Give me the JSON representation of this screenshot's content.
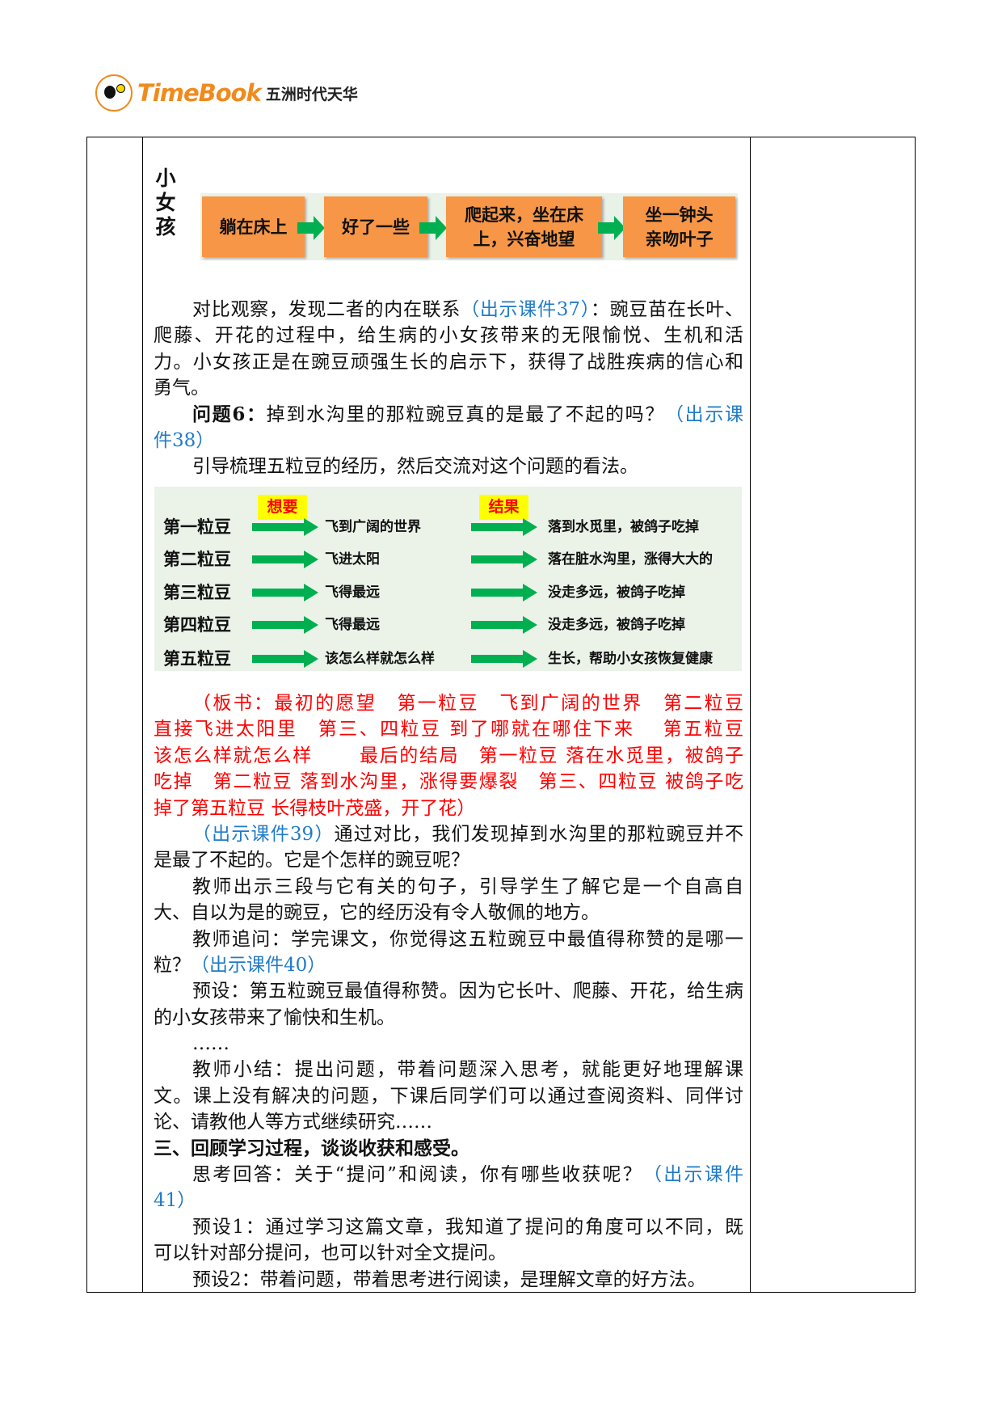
{
  "header": {
    "brand": "TimeBook",
    "brand_cn": "五洲时代天华"
  },
  "colors": {
    "orange_box": "#f79646",
    "green_arrow": "#00b050",
    "link_blue": "#1f7bc8",
    "board_red": "#ff0000",
    "tag_yellow": "#ffff00"
  },
  "flow1": {
    "label": "小女孩",
    "steps": [
      "躺在床上",
      "好了一些",
      "爬起来，坐在床上，兴奋地望",
      "坐一钟头亲吻叶子"
    ]
  },
  "flow2": {
    "tag_want": "想要",
    "tag_result": "结果",
    "rows": [
      {
        "pea": "第一粒豆",
        "want": "飞到广阔的世界",
        "result": "落到水觅里，被鸽子吃掉"
      },
      {
        "pea": "第二粒豆",
        "want": "飞进太阳",
        "result": "落在脏水沟里，涨得大大的"
      },
      {
        "pea": "第三粒豆",
        "want": "飞得最远",
        "result": "没走多远，被鸽子吃掉"
      },
      {
        "pea": "第四粒豆",
        "want": "飞得最远",
        "result": "没走多远，被鸽子吃掉"
      },
      {
        "pea": "第五粒豆",
        "want": "该怎么样就怎么样",
        "result": "生长，帮助小女孩恢复健康"
      }
    ]
  },
  "text_a": [
    {
      "ind": true,
      "segs": [
        {
          "t": "对比观察，发现二者的内在联系"
        },
        {
          "t": "（出示课件37）",
          "c": "blue"
        },
        {
          "t": "：豌豆苗在长叶、"
        }
      ]
    },
    {
      "segs": [
        {
          "t": "爬藤、开花的过程中，给生病的小女孩带来的无限愉悦、生机和活"
        }
      ]
    },
    {
      "segs": [
        {
          "t": "力。小女孩正是在豌豆顽强生长的启示下，获得了战胜疾病的信心和"
        }
      ]
    },
    {
      "end": true,
      "segs": [
        {
          "t": "勇气。"
        }
      ]
    },
    {
      "ind": true,
      "segs": [
        {
          "t": "问题6：",
          "c": "bold"
        },
        {
          "t": "掉到水沟里的那粒豌豆真的是最了不起的吗？"
        },
        {
          "t": "（出示课",
          "c": "blue"
        }
      ]
    },
    {
      "end": true,
      "segs": [
        {
          "t": "件38）",
          "c": "blue"
        }
      ]
    },
    {
      "ind": true,
      "end": true,
      "segs": [
        {
          "t": "引导梳理五粒豆的经历，然后交流对这个问题的看法。"
        }
      ]
    }
  ],
  "text_b": [
    {
      "ind": true,
      "segs": [
        {
          "t": "（板书：最初的愿望　第一粒豆　飞到广阔的世界　第二粒豆",
          "c": "red"
        }
      ]
    },
    {
      "segs": [
        {
          "t": "直接飞进太阳里　第三、四粒豆 到了哪就在哪住下来　 第五粒豆",
          "c": "red"
        }
      ]
    },
    {
      "segs": [
        {
          "t": "该怎么样就怎么样　　 最后的结局　第一粒豆 落在水觅里，被鸽子",
          "c": "red"
        }
      ]
    },
    {
      "segs": [
        {
          "t": "吃掉　第二粒豆 落到水沟里，涨得要爆裂　第三、四粒豆 被鸽子吃",
          "c": "red"
        }
      ]
    },
    {
      "end": true,
      "segs": [
        {
          "t": "掉了第五粒豆 长得枝叶茂盛，开了花）",
          "c": "red"
        }
      ]
    },
    {
      "ind": true,
      "segs": [
        {
          "t": "（出示课件39）",
          "c": "blue"
        },
        {
          "t": "通过对比，我们发现掉到水沟里的那粒豌豆并不"
        }
      ]
    },
    {
      "end": true,
      "segs": [
        {
          "t": "是最了不起的。它是个怎样的豌豆呢？"
        }
      ]
    },
    {
      "ind": true,
      "segs": [
        {
          "t": "教师出示三段与它有关的句子，引导学生了解它是一个自高自"
        }
      ]
    },
    {
      "end": true,
      "segs": [
        {
          "t": "大、自以为是的豌豆，它的经历没有令人敬佩的地方。"
        }
      ]
    },
    {
      "ind": true,
      "segs": [
        {
          "t": "教师追问：学完课文，你觉得这五粒豌豆中最值得称赞的是哪一"
        }
      ]
    },
    {
      "end": true,
      "segs": [
        {
          "t": "粒？"
        },
        {
          "t": "（出示课件40）",
          "c": "blue"
        }
      ]
    },
    {
      "ind": true,
      "segs": [
        {
          "t": "预设：第五粒豌豆最值得称赞。因为它长叶、爬藤、开花，给生病"
        }
      ]
    },
    {
      "end": true,
      "segs": [
        {
          "t": "的小女孩带来了愉快和生机。"
        }
      ]
    },
    {
      "ind": true,
      "end": true,
      "segs": [
        {
          "t": "……"
        }
      ]
    },
    {
      "ind": true,
      "segs": [
        {
          "t": "教师小结：提出问题，带着问题深入思考，就能更好地理解课"
        }
      ]
    },
    {
      "segs": [
        {
          "t": "文。课上没有解决的问题，下课后同学们可以通过查阅资料、同伴讨"
        }
      ]
    },
    {
      "end": true,
      "segs": [
        {
          "t": "论、请教他人等方式继续研究……"
        }
      ]
    },
    {
      "end": true,
      "segs": [
        {
          "t": "三、回顾学习过程，谈谈收获和感受。",
          "c": "bold"
        }
      ]
    },
    {
      "ind": true,
      "segs": [
        {
          "t": "思考回答：关于“提问”和阅读，你有哪些收获呢？"
        },
        {
          "t": "（出示课件",
          "c": "blue"
        }
      ]
    },
    {
      "end": true,
      "segs": [
        {
          "t": "41）",
          "c": "blue"
        }
      ]
    },
    {
      "ind": true,
      "segs": [
        {
          "t": "预设1：通过学习这篇文章，我知道了提问的角度可以不同，既"
        }
      ]
    },
    {
      "end": true,
      "segs": [
        {
          "t": "可以针对部分提问，也可以针对全文提问。"
        }
      ]
    },
    {
      "ind": true,
      "end": true,
      "segs": [
        {
          "t": "预设2：带着问题，带着思考进行阅读，是理解文章的好方法。"
        }
      ]
    }
  ]
}
